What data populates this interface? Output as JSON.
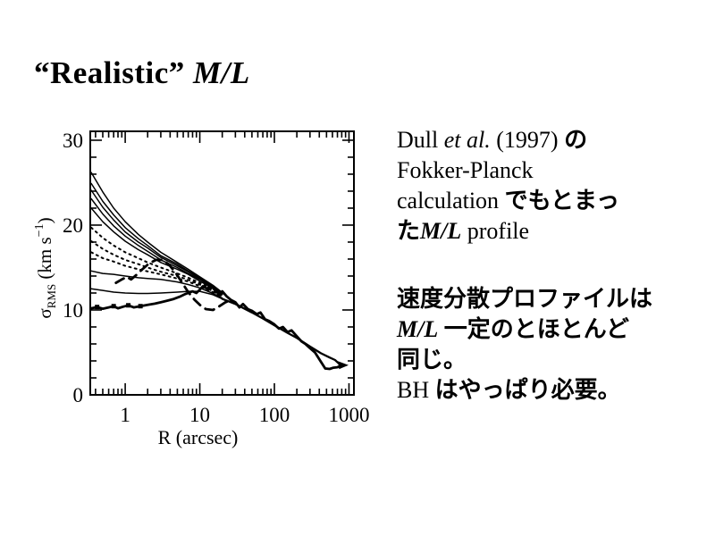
{
  "colors": {
    "ink": "#000000",
    "background": "#ffffff"
  },
  "slide": {
    "title": {
      "text": "“Realistic” M/L",
      "segments": [
        {
          "t": "“Realistic”  ",
          "s": "rmb"
        },
        {
          "t": "M/L",
          "s": "mib"
        }
      ]
    },
    "right_column": {
      "block1": {
        "text": "Dull et al. (1997) の Fokker-Planck calculation でもとまった M/L profile",
        "lines": [
          [
            {
              "t": "Dull ",
              "s": "rm"
            },
            {
              "t": "et al.",
              "s": "it"
            },
            {
              "t": " (1997) ",
              "s": "rm"
            },
            {
              "t": "の",
              "s": "jp"
            }
          ],
          [
            {
              "t": "Fokker-Planck",
              "s": "rm"
            }
          ],
          [
            {
              "t": "calculation ",
              "s": "rm"
            },
            {
              "t": "でもとまっ",
              "s": "jp"
            }
          ],
          [
            {
              "t": "た",
              "s": "jp"
            },
            {
              "t": "M/L",
              "s": "mi"
            },
            {
              "t": " profile",
              "s": "rm"
            }
          ]
        ]
      },
      "block2": {
        "text": "速度分散プロファイルは M/L 一定のとほとんど同じ。BH はやっぱり必要。",
        "lines": [
          [
            {
              "t": "速度分散プロファイルは",
              "s": "jp"
            }
          ],
          [
            {
              "t": "M/L",
              "s": "mi"
            },
            {
              "t": " ",
              "s": "rm"
            },
            {
              "t": "一定のとほとんど",
              "s": "jp"
            }
          ],
          [
            {
              "t": "同じ。",
              "s": "jp"
            }
          ],
          [
            {
              "t": "BH ",
              "s": "rm"
            },
            {
              "t": "はやっぱり必要。",
              "s": "jp"
            }
          ]
        ]
      }
    }
  },
  "chart_data": {
    "type": "line",
    "title": "",
    "xlabel": "R (arcsec)",
    "ylabel": "σ_RMS (km s^−1)",
    "ylabel_parts": {
      "base": "σ",
      "sub": "RMS",
      "mid": " (km s",
      "sup": "−1",
      "end": ")"
    },
    "x_scale": "log",
    "xlim": [
      0.34,
      1165
    ],
    "ylim": [
      0,
      31.05
    ],
    "x_major_ticks": [
      1,
      10,
      100,
      1000
    ],
    "x_major_labels": [
      "1",
      "10",
      "100",
      "1000"
    ],
    "y_major_ticks": [
      0,
      10,
      20,
      30
    ],
    "y_major_labels": [
      "0",
      "10",
      "20",
      "30"
    ],
    "y_minor_step": 2,
    "grid": false,
    "legend": "none",
    "model_curves": [
      {
        "style": "solid",
        "r": [
          0.35,
          0.5,
          0.7,
          1,
          1.5,
          2,
          3,
          5,
          7,
          10,
          15,
          20
        ],
        "sigma": [
          26.2,
          23.9,
          22.0,
          20.4,
          18.9,
          18.0,
          16.8,
          15.6,
          14.8,
          13.9,
          12.9,
          12.05
        ]
      },
      {
        "style": "solid",
        "r": [
          0.35,
          0.5,
          0.7,
          1,
          1.5,
          2,
          3,
          5,
          7,
          10,
          15,
          20
        ],
        "sigma": [
          24.9,
          22.8,
          21.2,
          19.7,
          18.4,
          17.6,
          16.4,
          15.4,
          14.6,
          13.8,
          12.8,
          12.0
        ]
      },
      {
        "style": "solid",
        "r": [
          0.35,
          0.5,
          0.7,
          1,
          1.5,
          2,
          3,
          5,
          7,
          10,
          15,
          20
        ],
        "sigma": [
          24.1,
          22.1,
          20.6,
          19.2,
          18.0,
          17.3,
          16.2,
          15.2,
          14.5,
          13.7,
          12.7,
          11.9
        ]
      },
      {
        "style": "solid",
        "r": [
          0.35,
          0.5,
          0.7,
          1,
          1.5,
          2,
          3,
          5,
          7,
          10,
          15,
          20
        ],
        "sigma": [
          23.1,
          21.3,
          19.9,
          18.7,
          17.6,
          16.9,
          15.9,
          15.0,
          14.3,
          13.6,
          12.6,
          11.9
        ]
      },
      {
        "style": "solid",
        "r": [
          0.35,
          0.5,
          0.7,
          1,
          1.5,
          2,
          3,
          5,
          7,
          10,
          15,
          20
        ],
        "sigma": [
          22.0,
          20.4,
          19.2,
          18.1,
          17.1,
          16.5,
          15.6,
          14.8,
          14.2,
          13.4,
          12.55,
          11.8
        ]
      },
      {
        "style": "dotted",
        "r": [
          0.35,
          0.5,
          0.7,
          1,
          1.5,
          2,
          3,
          5,
          7,
          10,
          15,
          20
        ],
        "sigma": [
          19.7,
          18.5,
          17.6,
          16.8,
          16.1,
          15.6,
          15.0,
          14.3,
          13.8,
          13.2,
          12.4,
          11.7
        ]
      },
      {
        "style": "dotted",
        "r": [
          0.35,
          0.5,
          0.7,
          1,
          1.5,
          2,
          3,
          5,
          7,
          10,
          15,
          20
        ],
        "sigma": [
          18.1,
          17.2,
          16.5,
          15.9,
          15.4,
          15.0,
          14.5,
          14.0,
          13.55,
          13.0,
          12.2,
          11.6
        ]
      },
      {
        "style": "dotted",
        "r": [
          0.35,
          0.5,
          0.7,
          1,
          1.5,
          2,
          3,
          5,
          7,
          10,
          15,
          20
        ],
        "sigma": [
          16.8,
          16.1,
          15.7,
          15.2,
          14.8,
          14.55,
          14.2,
          13.7,
          13.35,
          12.8,
          12.1,
          11.5
        ]
      },
      {
        "style": "solid",
        "r": [
          0.35,
          0.5,
          0.7,
          1,
          1.5,
          2,
          3,
          5,
          7,
          10,
          15,
          20
        ],
        "sigma": [
          14.6,
          14.3,
          14.2,
          14.0,
          13.8,
          13.7,
          13.6,
          13.3,
          13.0,
          12.6,
          11.95,
          11.4
        ]
      },
      {
        "style": "solid",
        "r": [
          0.35,
          0.5,
          0.7,
          1,
          1.5,
          2,
          3,
          5,
          7,
          10,
          15,
          20
        ],
        "sigma": [
          12.5,
          12.3,
          12.1,
          12.0,
          11.95,
          11.95,
          12.0,
          12.1,
          12.2,
          12.2,
          11.8,
          11.3
        ]
      }
    ],
    "common_decline": {
      "style": "solid-thick",
      "points": [
        [
          20,
          11.3
        ],
        [
          30,
          10.7
        ],
        [
          50,
          9.7
        ],
        [
          70,
          9.0
        ],
        [
          100,
          8.2
        ],
        [
          150,
          7.3
        ],
        [
          200,
          6.7
        ],
        [
          300,
          5.7
        ],
        [
          420,
          4.9
        ],
        [
          550,
          4.4
        ],
        [
          650,
          4.1
        ],
        [
          770,
          3.5
        ]
      ]
    },
    "data_trace": {
      "style": "thick-jagged",
      "points": [
        [
          0.35,
          10.2
        ],
        [
          0.42,
          10.35
        ],
        [
          0.5,
          10.15
        ],
        [
          0.6,
          10.3
        ],
        [
          0.7,
          10.45
        ],
        [
          0.8,
          10.2
        ],
        [
          0.95,
          10.4
        ],
        [
          1.1,
          10.55
        ],
        [
          1.3,
          10.3
        ],
        [
          1.6,
          10.45
        ],
        [
          2,
          10.6
        ],
        [
          2.5,
          10.75
        ],
        [
          3,
          10.9
        ],
        [
          3.7,
          11.1
        ],
        [
          4.5,
          11.3
        ],
        [
          5.5,
          11.6
        ],
        [
          6.5,
          11.9
        ],
        [
          8,
          12.2
        ],
        [
          9,
          12.0
        ],
        [
          10,
          12.4
        ],
        [
          11,
          12.8
        ],
        [
          12.5,
          12.5
        ],
        [
          14,
          12.9
        ],
        [
          16,
          12.3
        ],
        [
          18,
          11.9
        ],
        [
          20,
          12.2
        ],
        [
          23,
          11.6
        ],
        [
          26,
          11.2
        ],
        [
          30,
          10.9
        ],
        [
          34,
          10.3
        ],
        [
          38,
          10.7
        ],
        [
          44,
          10.1
        ],
        [
          50,
          9.9
        ],
        [
          58,
          9.5
        ],
        [
          65,
          9.7
        ],
        [
          75,
          8.9
        ],
        [
          85,
          8.7
        ],
        [
          100,
          8.3
        ],
        [
          115,
          7.8
        ],
        [
          130,
          8.0
        ],
        [
          150,
          7.4
        ],
        [
          170,
          7.6
        ],
        [
          200,
          6.9
        ],
        [
          230,
          6.3
        ],
        [
          260,
          6.0
        ],
        [
          300,
          5.5
        ],
        [
          350,
          5.0
        ],
        [
          420,
          3.9
        ],
        [
          480,
          3.1
        ],
        [
          550,
          3.05
        ],
        [
          620,
          3.2
        ],
        [
          700,
          3.25
        ],
        [
          770,
          3.4
        ]
      ]
    },
    "data_markers": [
      [
        0.42,
        10.35
      ],
      [
        0.7,
        10.45
      ],
      [
        1.1,
        10.55
      ],
      [
        1.6,
        10.45
      ]
    ],
    "dashed_curve": {
      "style": "dashed",
      "points": [
        [
          0.75,
          13.2
        ],
        [
          0.9,
          13.6
        ],
        [
          1.05,
          13.9
        ],
        [
          1.2,
          13.6
        ],
        [
          1.4,
          14.1
        ],
        [
          1.7,
          14.8
        ],
        [
          2.1,
          15.5
        ],
        [
          2.6,
          15.9
        ],
        [
          3.2,
          15.9
        ],
        [
          3.9,
          15.3
        ],
        [
          4.8,
          14.3
        ],
        [
          5.8,
          13.2
        ],
        [
          7,
          12.1
        ],
        [
          8.5,
          11.2
        ],
        [
          10,
          10.6
        ],
        [
          12,
          10.1
        ],
        [
          15,
          10.0
        ],
        [
          18,
          10.4
        ],
        [
          22,
          10.9
        ],
        [
          27,
          11.2
        ]
      ]
    },
    "end_marker": {
      "r": 770,
      "sigma": 3.4,
      "shape": "arrowhead"
    }
  }
}
